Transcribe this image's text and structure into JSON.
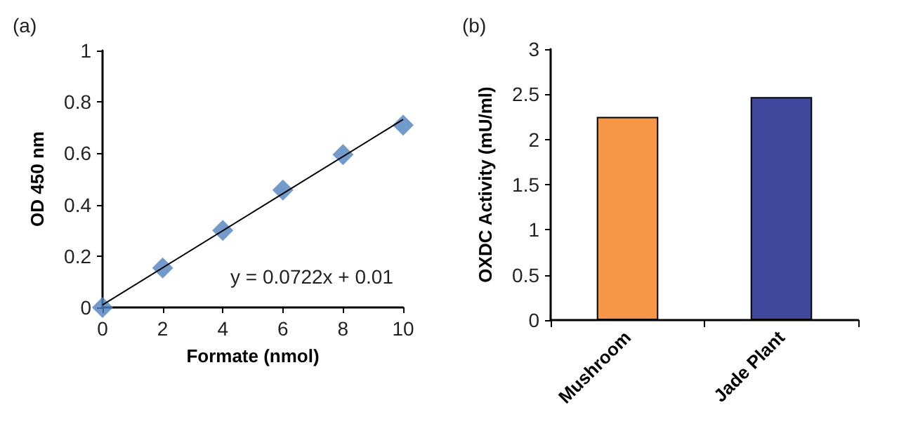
{
  "chart_data": [
    {
      "type": "scatter",
      "title": "(a)",
      "xlabel": "Formate (nmol)",
      "ylabel": "OD 450 nm",
      "annotations": [
        "y = 0.0722x + 0.01"
      ],
      "marker": "diamond",
      "xlim": [
        0,
        10
      ],
      "xticks": [
        0,
        2,
        4,
        6,
        8,
        10
      ],
      "ylim": [
        0,
        1
      ],
      "yticks": [
        0,
        0.2,
        0.4,
        0.6,
        0.8,
        1
      ],
      "series": [
        {
          "type": "scatter",
          "color": "#4f81bd",
          "x": [
            0,
            2,
            4,
            6,
            8,
            10
          ],
          "values": [
            0,
            0.154,
            0.3,
            0.457,
            0.595,
            0.71
          ]
        },
        {
          "type": "line",
          "color": "#000000",
          "x": [
            0,
            10
          ],
          "values": [
            0.01,
            0.732
          ],
          "marker": "none"
        }
      ]
    },
    {
      "type": "bar",
      "title": "(b)",
      "ylabel": "OXDC Activity (mU/ml)",
      "categories": [
        "Mushroom",
        "Jade Plant"
      ],
      "colors": [
        "#f79646",
        "#3f489c"
      ],
      "values": [
        2.25,
        2.47
      ],
      "ylim": [
        0,
        3
      ],
      "yticks": [
        0,
        0.5,
        1,
        1.5,
        2,
        2.5,
        3
      ]
    }
  ]
}
